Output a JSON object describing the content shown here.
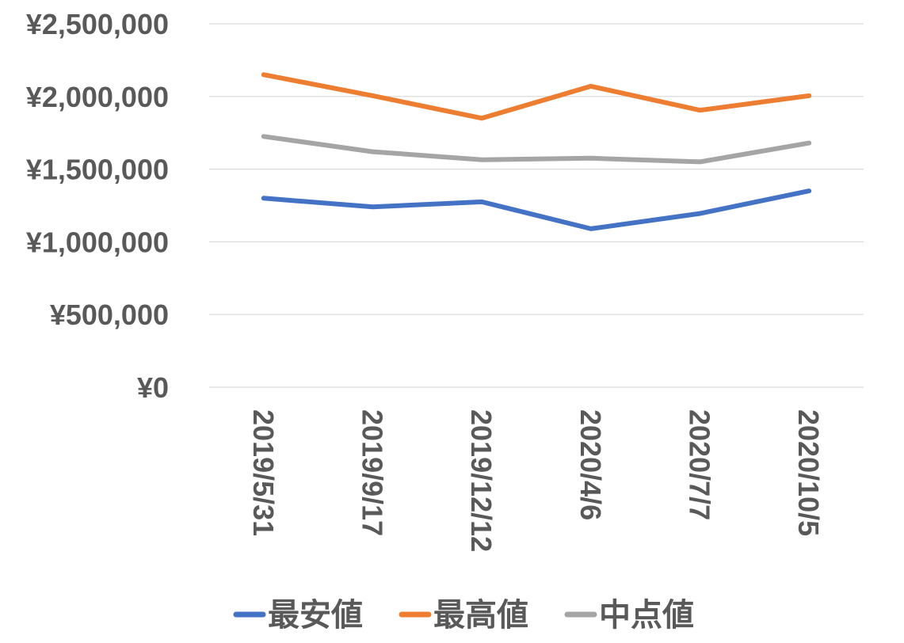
{
  "chart_data": {
    "type": "line",
    "categories": [
      "2019/5/31",
      "2019/9/17",
      "2019/12/12",
      "2020/4/6",
      "2020/7/7",
      "2020/10/5"
    ],
    "series": [
      {
        "name": "最安値",
        "color": "#4472c4",
        "values": [
          1300000,
          1240000,
          1275000,
          1090000,
          1195000,
          1350000
        ]
      },
      {
        "name": "最高値",
        "color": "#ed7d31",
        "values": [
          2150000,
          2005000,
          1850000,
          2070000,
          1905000,
          2005000
        ]
      },
      {
        "name": "中点値",
        "color": "#a5a5a5",
        "values": [
          1725000,
          1620000,
          1565000,
          1575000,
          1550000,
          1680000
        ]
      }
    ],
    "y_ticks": [
      "¥0",
      "¥500,000",
      "¥1,000,000",
      "¥1,500,000",
      "¥2,000,000",
      "¥2,500,000"
    ],
    "ylim": [
      0,
      2500000
    ],
    "y_step": 500000,
    "grid": true,
    "legend_position": "bottom",
    "title": "",
    "xlabel": "",
    "ylabel": ""
  }
}
